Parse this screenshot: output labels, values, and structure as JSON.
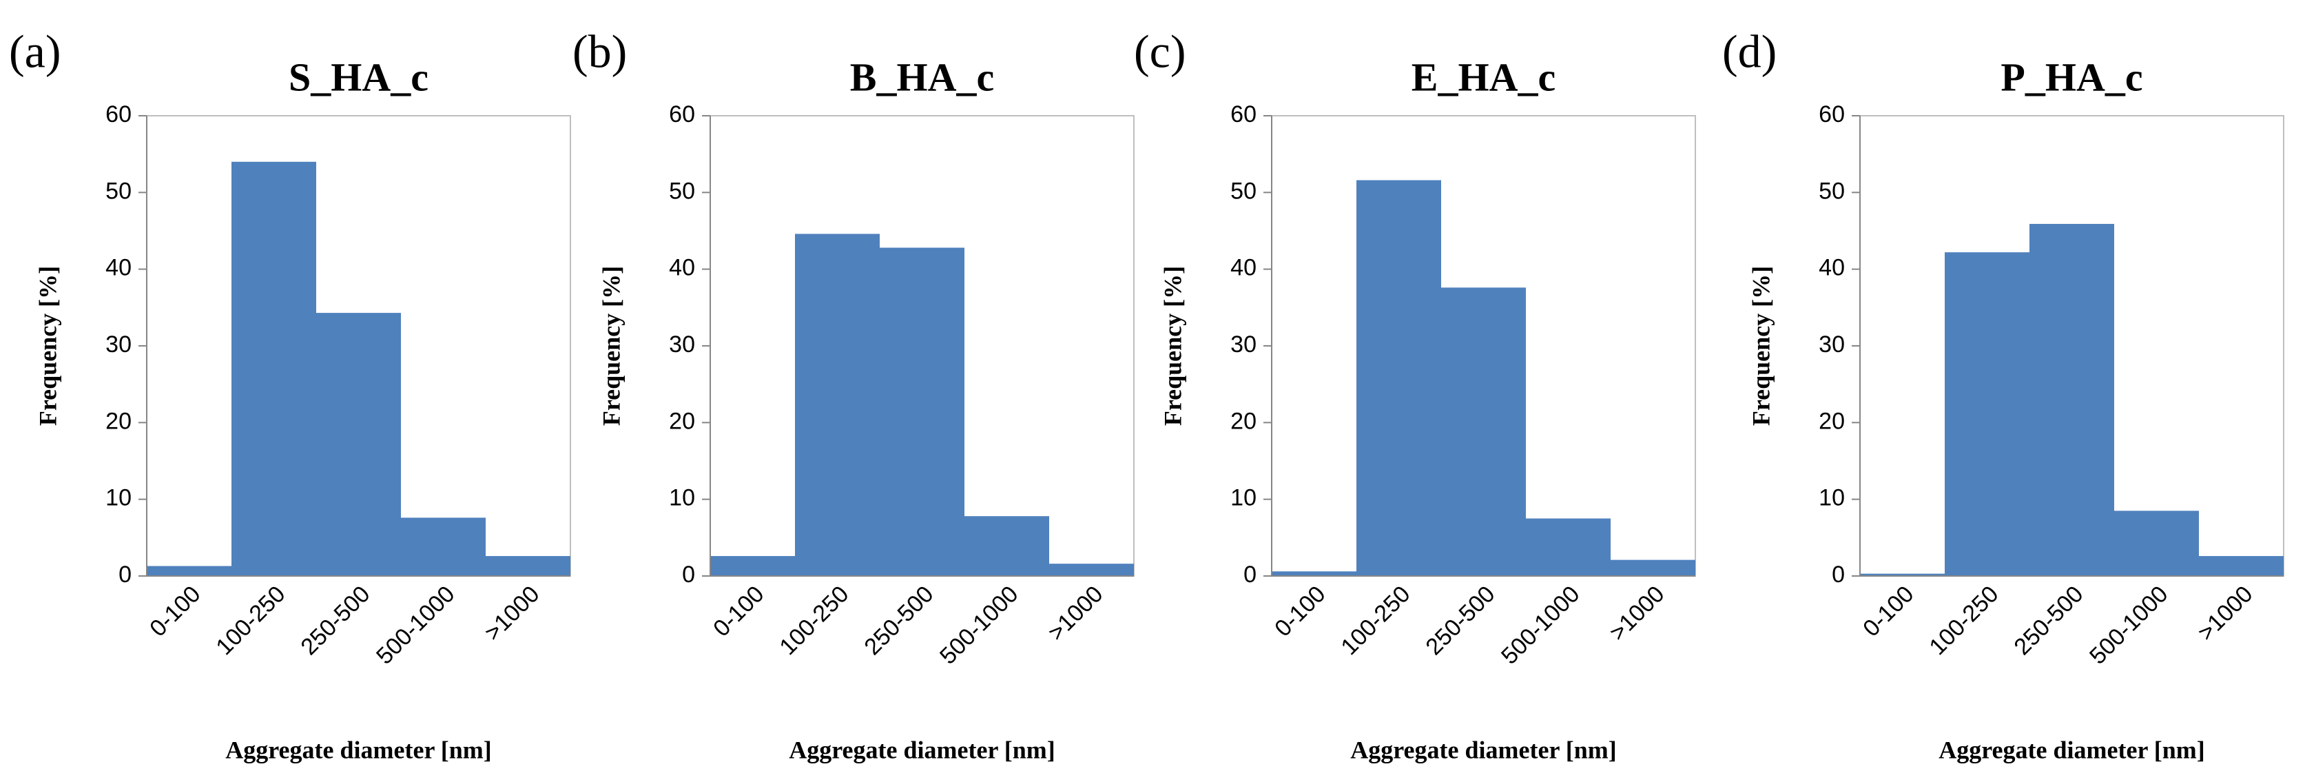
{
  "chart_data": [
    {
      "type": "bar",
      "panel_label": "(a)",
      "title": "S_HA_c",
      "ylabel": "Frequency [%]",
      "xlabel": "Aggregate diameter [nm]",
      "categories": [
        "0-100",
        "100-250",
        "250-500",
        "500-1000",
        ">1000"
      ],
      "values": [
        1.3,
        54,
        34.3,
        7.6,
        2.6
      ],
      "color": "#4f81bd",
      "ylim": [
        0,
        60
      ],
      "yticks": [
        0,
        10,
        20,
        30,
        40,
        50,
        60
      ]
    },
    {
      "type": "bar",
      "panel_label": "(b)",
      "title": "B_HA_c",
      "ylabel": "Frequency [%]",
      "xlabel": "Aggregate diameter [nm]",
      "categories": [
        "0-100",
        "100-250",
        "250-500",
        "500-1000",
        ">1000"
      ],
      "values": [
        2.6,
        44.6,
        42.8,
        7.8,
        1.6
      ],
      "color": "#4f81bd",
      "ylim": [
        0,
        60
      ],
      "yticks": [
        0,
        10,
        20,
        30,
        40,
        50,
        60
      ]
    },
    {
      "type": "bar",
      "panel_label": "(c)",
      "title": "E_HA_c",
      "ylabel": "Frequency [%]",
      "xlabel": "Aggregate diameter [nm]",
      "categories": [
        "0-100",
        "100-250",
        "250-500",
        "500-1000",
        ">1000"
      ],
      "values": [
        0.6,
        51.6,
        37.6,
        7.5,
        2.1
      ],
      "color": "#4f81bd",
      "ylim": [
        0,
        60
      ],
      "yticks": [
        0,
        10,
        20,
        30,
        40,
        50,
        60
      ]
    },
    {
      "type": "bar",
      "panel_label": "(d)",
      "title": "P_HA_c",
      "ylabel": "Frequency [%]",
      "xlabel": "Aggregate diameter [nm]",
      "categories": [
        "0-100",
        "100-250",
        "250-500",
        "500-1000",
        ">1000"
      ],
      "values": [
        0.3,
        42.2,
        45.9,
        8.5,
        2.6
      ],
      "color": "#4f81bd",
      "ylim": [
        0,
        60
      ],
      "yticks": [
        0,
        10,
        20,
        30,
        40,
        50,
        60
      ]
    }
  ]
}
